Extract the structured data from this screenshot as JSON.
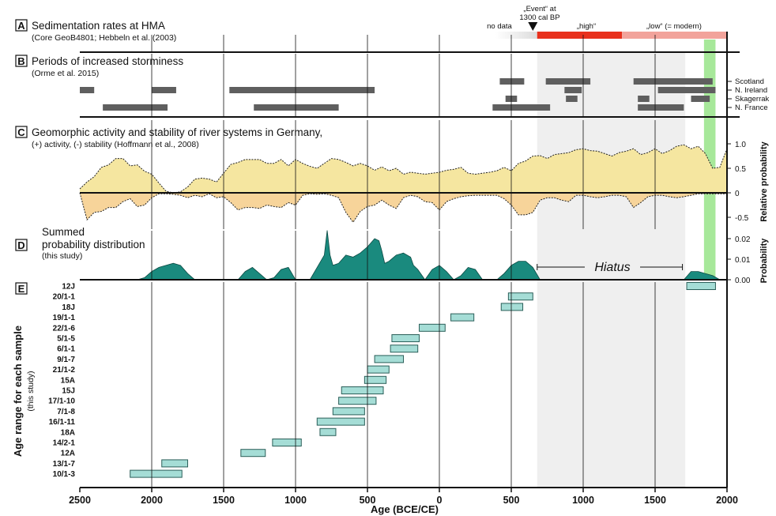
{
  "colors": {
    "hiatus_shade": "#efefef",
    "green_band": "#a7e89a",
    "rate_nodata": "#dcdcdc",
    "rate_high": "#e8301c",
    "rate_low": "#f2a39b",
    "storm_bar": "#5f5f5f",
    "activity_fill": "#f5e6a0",
    "stability_fill": "#f7d49a",
    "spd_fill": "#1a8a7e",
    "sample_fill": "#a5ddd6",
    "sample_stroke": "#2b5f59"
  },
  "panels": {
    "a": {
      "label": "A",
      "title": "Sedimentation rates at HMA",
      "subtitle": "(Core GeoB4801; Hebbeln et al. (2003)",
      "nodata": "no data",
      "high": "„high“",
      "low": "„low“ (= modern)",
      "event_line1": "„Event“ at",
      "event_line2": "1300 cal BP"
    },
    "b": {
      "label": "B",
      "title": "Periods of increased storminess",
      "subtitle": "(Orme et al. 2015)",
      "regions": [
        "Scotland",
        "N. Ireland",
        "Skagerrak",
        "N. France"
      ]
    },
    "c": {
      "label": "C",
      "title": "Geomorphic activity and stability of river systems in Germany,",
      "subtitle": "(+) activity, (-) stability (Hoffmann et al., 2008)",
      "ylabel": "Relative probability",
      "yticks": [
        "1.0",
        "0.5",
        "0",
        "-0.5"
      ]
    },
    "d": {
      "label": "D",
      "title_line1": "Summed",
      "title_line2": "probability distribution",
      "subtitle": "(this study)",
      "ylabel": "Probability",
      "yticks": [
        "0.02",
        "0.01",
        "0.00"
      ],
      "hiatus": "Hiatus"
    },
    "e": {
      "label": "E",
      "ylabel": "Age range for each sample",
      "ysub": "(this study)"
    }
  },
  "xaxis": {
    "title": "Age (BCE/CE)",
    "ticks": [
      "2500",
      "2000",
      "1500",
      "1000",
      "500",
      "0",
      "500",
      "1000",
      "1500",
      "2000"
    ]
  },
  "chart_data": [
    {
      "type": "bar",
      "panel": "A",
      "title": "Sedimentation rates at HMA",
      "unit": "year CE",
      "segments": [
        {
          "label": "no data",
          "start": 390,
          "end": 680
        },
        {
          "label": "„high“",
          "start": 680,
          "end": 1270
        },
        {
          "label": "„low“ (= modern)",
          "start": 1270,
          "end": 2000
        }
      ],
      "event_marker": 650
    },
    {
      "type": "bar",
      "panel": "B",
      "title": "Periods of increased storminess",
      "unit": "year (negative = BCE)",
      "periods": [
        {
          "region": "Scotland",
          "start": 420,
          "end": 590
        },
        {
          "region": "Scotland",
          "start": 740,
          "end": 1050
        },
        {
          "region": "Scotland",
          "start": 1350,
          "end": 1900
        },
        {
          "region": "N. Ireland",
          "start": -2500,
          "end": -2400
        },
        {
          "region": "N. Ireland",
          "start": -2000,
          "end": -1830
        },
        {
          "region": "N. Ireland",
          "start": -1460,
          "end": -450
        },
        {
          "region": "N. Ireland",
          "start": 870,
          "end": 990
        },
        {
          "region": "N. Ireland",
          "start": 1520,
          "end": 1920
        },
        {
          "region": "Skagerrak",
          "start": 460,
          "end": 540
        },
        {
          "region": "Skagerrak",
          "start": 880,
          "end": 960
        },
        {
          "region": "Skagerrak",
          "start": 1380,
          "end": 1460
        },
        {
          "region": "Skagerrak",
          "start": 1750,
          "end": 1880
        },
        {
          "region": "N. France",
          "start": -2340,
          "end": -1890
        },
        {
          "region": "N. France",
          "start": -1290,
          "end": -700
        },
        {
          "region": "N. France",
          "start": 370,
          "end": 770
        },
        {
          "region": "N. France",
          "start": 1380,
          "end": 1700
        }
      ]
    },
    {
      "type": "area",
      "panel": "C",
      "title": "Geomorphic activity and stability of river systems in Germany,",
      "ylabel": "Relative probability",
      "ylim": [
        -0.5,
        1.0
      ],
      "x": [
        -2500,
        -2450,
        -2400,
        -2350,
        -2300,
        -2250,
        -2200,
        -2150,
        -2100,
        -2050,
        -2000,
        -1950,
        -1900,
        -1850,
        -1800,
        -1750,
        -1700,
        -1650,
        -1600,
        -1550,
        -1500,
        -1450,
        -1400,
        -1350,
        -1300,
        -1250,
        -1200,
        -1150,
        -1100,
        -1050,
        -1000,
        -950,
        -900,
        -850,
        -800,
        -750,
        -700,
        -650,
        -600,
        -550,
        -500,
        -450,
        -400,
        -350,
        -300,
        -250,
        -200,
        -150,
        -100,
        -50,
        0,
        50,
        100,
        150,
        200,
        250,
        300,
        350,
        400,
        450,
        500,
        550,
        600,
        650,
        700,
        750,
        800,
        850,
        900,
        950,
        1000,
        1050,
        1100,
        1150,
        1200,
        1250,
        1300,
        1350,
        1400,
        1450,
        1500,
        1550,
        1600,
        1650,
        1700,
        1750,
        1800,
        1850,
        1900,
        1950,
        2000
      ],
      "series": [
        {
          "values": [
            0.08,
            0.22,
            0.33,
            0.52,
            0.57,
            0.7,
            0.7,
            0.55,
            0.57,
            0.44,
            0.38,
            0.2,
            0.03,
            0.0,
            0.02,
            0.12,
            0.28,
            0.3,
            0.28,
            0.22,
            0.4,
            0.58,
            0.62,
            0.68,
            0.68,
            0.68,
            0.6,
            0.6,
            0.68,
            0.55,
            0.68,
            0.6,
            0.54,
            0.5,
            0.6,
            0.7,
            0.68,
            0.62,
            0.55,
            0.6,
            0.55,
            0.46,
            0.53,
            0.45,
            0.5,
            0.38,
            0.42,
            0.4,
            0.38,
            0.4,
            0.42,
            0.46,
            0.48,
            0.52,
            0.4,
            0.38,
            0.4,
            0.42,
            0.45,
            0.52,
            0.45,
            0.6,
            0.65,
            0.75,
            0.76,
            0.7,
            0.78,
            0.8,
            0.82,
            0.88,
            0.9,
            0.86,
            0.85,
            0.8,
            0.75,
            0.82,
            0.85,
            0.9,
            0.78,
            0.82,
            0.9,
            0.8,
            0.86,
            0.95,
            0.98,
            0.9,
            0.95,
            0.8,
            0.5,
            0.52,
            0.9
          ]
        },
        {
          "values": [
            0.0,
            -0.55,
            -0.4,
            -0.38,
            -0.3,
            -0.3,
            -0.18,
            -0.12,
            -0.28,
            -0.25,
            -0.1,
            -0.02,
            -0.02,
            -0.03,
            -0.05,
            -0.1,
            -0.05,
            -0.08,
            -0.02,
            -0.1,
            -0.08,
            -0.2,
            -0.35,
            -0.3,
            -0.3,
            -0.32,
            -0.25,
            -0.28,
            -0.3,
            -0.2,
            -0.25,
            -0.05,
            -0.02,
            -0.03,
            -0.02,
            -0.05,
            -0.1,
            -0.4,
            -0.6,
            -0.38,
            -0.28,
            -0.25,
            -0.15,
            -0.25,
            -0.32,
            -0.1,
            -0.05,
            -0.08,
            -0.18,
            -0.2,
            -0.35,
            -0.18,
            -0.12,
            -0.08,
            -0.06,
            -0.05,
            -0.05,
            -0.05,
            -0.05,
            -0.12,
            -0.25,
            -0.45,
            -0.45,
            -0.4,
            -0.15,
            -0.1,
            -0.1,
            -0.15,
            -0.18,
            -0.05,
            -0.05,
            -0.08,
            -0.1,
            -0.08,
            -0.05,
            -0.05,
            -0.08,
            -0.3,
            -0.2,
            -0.08,
            -0.05,
            -0.05,
            -0.08,
            -0.1,
            -0.08,
            -0.05,
            -0.02,
            -0.02,
            -0.02,
            -0.02,
            -0.02
          ]
        }
      ]
    },
    {
      "type": "area",
      "panel": "D",
      "title": "Summed probability distribution",
      "ylabel": "Probability",
      "ylim": [
        0,
        0.025
      ],
      "x": [
        -2100,
        -2050,
        -2000,
        -1950,
        -1900,
        -1850,
        -1800,
        -1750,
        -1700,
        -1400,
        -1350,
        -1300,
        -1250,
        -1200,
        -1150,
        -1100,
        -1050,
        -1000,
        -900,
        -850,
        -800,
        -780,
        -760,
        -740,
        -700,
        -650,
        -600,
        -550,
        -500,
        -450,
        -420,
        -400,
        -380,
        -350,
        -300,
        -250,
        -200,
        -180,
        -150,
        -100,
        -50,
        0,
        50,
        100,
        150,
        200,
        250,
        300,
        400,
        450,
        500,
        550,
        600,
        650,
        700,
        1700,
        1750,
        1800,
        1850,
        1900,
        1950
      ],
      "values": [
        0.0,
        0.001,
        0.004,
        0.006,
        0.007,
        0.008,
        0.007,
        0.003,
        0.0,
        0.0,
        0.004,
        0.006,
        0.003,
        0.0,
        0.001,
        0.005,
        0.006,
        0.0,
        0.0,
        0.006,
        0.012,
        0.024,
        0.012,
        0.007,
        0.008,
        0.012,
        0.011,
        0.013,
        0.016,
        0.02,
        0.019,
        0.014,
        0.008,
        0.009,
        0.012,
        0.013,
        0.011,
        0.007,
        0.005,
        0.0,
        0.005,
        0.007,
        0.004,
        0.0,
        0.002,
        0.006,
        0.005,
        0.0,
        0.0,
        0.003,
        0.007,
        0.009,
        0.009,
        0.006,
        0.0,
        0.0,
        0.004,
        0.004,
        0.003,
        0.002,
        0.0
      ]
    },
    {
      "type": "bar",
      "panel": "E",
      "ylabel": "Age range for each sample",
      "unit": "year (negative = BCE)",
      "samples": [
        {
          "name": "12J",
          "start": 1720,
          "end": 1920
        },
        {
          "name": "20/1-1",
          "start": 480,
          "end": 650
        },
        {
          "name": "18J",
          "start": 430,
          "end": 580
        },
        {
          "name": "19/1-1",
          "start": 80,
          "end": 240
        },
        {
          "name": "22/1-6",
          "start": -140,
          "end": 40
        },
        {
          "name": "5/1-5",
          "start": -330,
          "end": -140
        },
        {
          "name": "6/1-1",
          "start": -340,
          "end": -150
        },
        {
          "name": "9/1-7",
          "start": -450,
          "end": -250
        },
        {
          "name": "21/1-2",
          "start": -500,
          "end": -350
        },
        {
          "name": "15A",
          "start": -520,
          "end": -370
        },
        {
          "name": "15J",
          "start": -680,
          "end": -390
        },
        {
          "name": "17/1-10",
          "start": -700,
          "end": -440
        },
        {
          "name": "7/1-8",
          "start": -740,
          "end": -520
        },
        {
          "name": "16/1-11",
          "start": -850,
          "end": -520
        },
        {
          "name": "18A",
          "start": -830,
          "end": -720
        },
        {
          "name": "14/2-1",
          "start": -1160,
          "end": -960
        },
        {
          "name": "12A",
          "start": -1380,
          "end": -1210
        },
        {
          "name": "13/1-7",
          "start": -1930,
          "end": -1750
        },
        {
          "name": "10/1-3",
          "start": -2150,
          "end": -1790
        }
      ]
    }
  ]
}
